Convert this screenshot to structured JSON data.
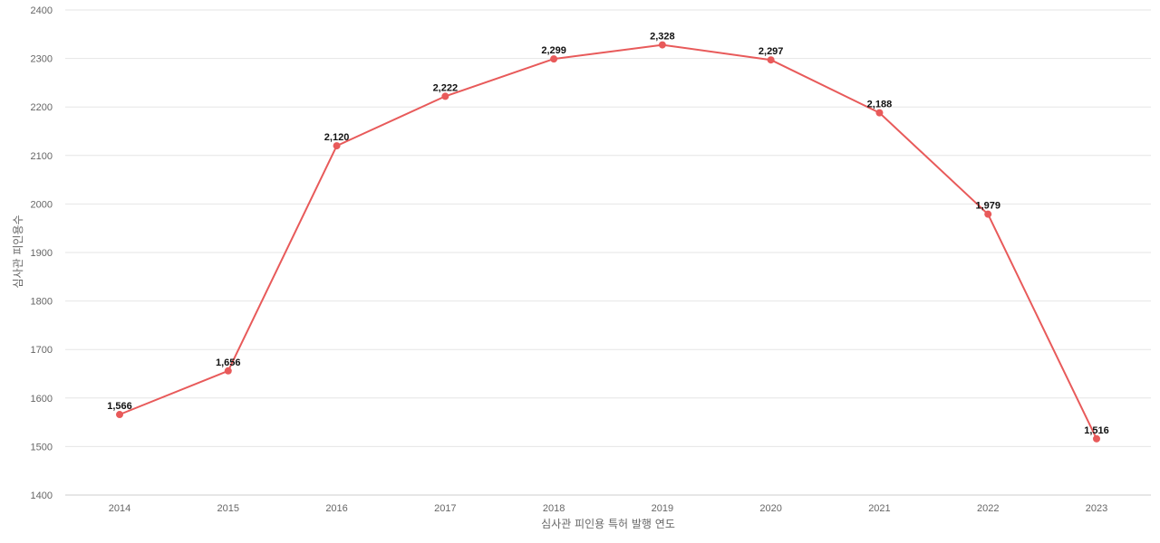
{
  "chart_data": {
    "type": "line",
    "xlabel": "심사관 피인용 특허 발행 연도",
    "ylabel": "심사관 피인용수",
    "categories": [
      "2014",
      "2015",
      "2016",
      "2017",
      "2018",
      "2019",
      "2020",
      "2021",
      "2022",
      "2023"
    ],
    "series": [
      {
        "values": [
          1566,
          1656,
          2120,
          2222,
          2299,
          2328,
          2297,
          2188,
          1979,
          1516
        ],
        "labels": [
          "1,566",
          "1,656",
          "2,120",
          "2,222",
          "2,299",
          "2,328",
          "2,297",
          "2,188",
          "1,979",
          "1,516"
        ],
        "color": "#e85a5a"
      }
    ],
    "ylim": [
      1400,
      2400
    ],
    "yticks": [
      "1400",
      "1500",
      "1600",
      "1700",
      "1800",
      "1900",
      "2000",
      "2100",
      "2200",
      "2300",
      "2400"
    ],
    "grid": true,
    "legend": "none"
  }
}
